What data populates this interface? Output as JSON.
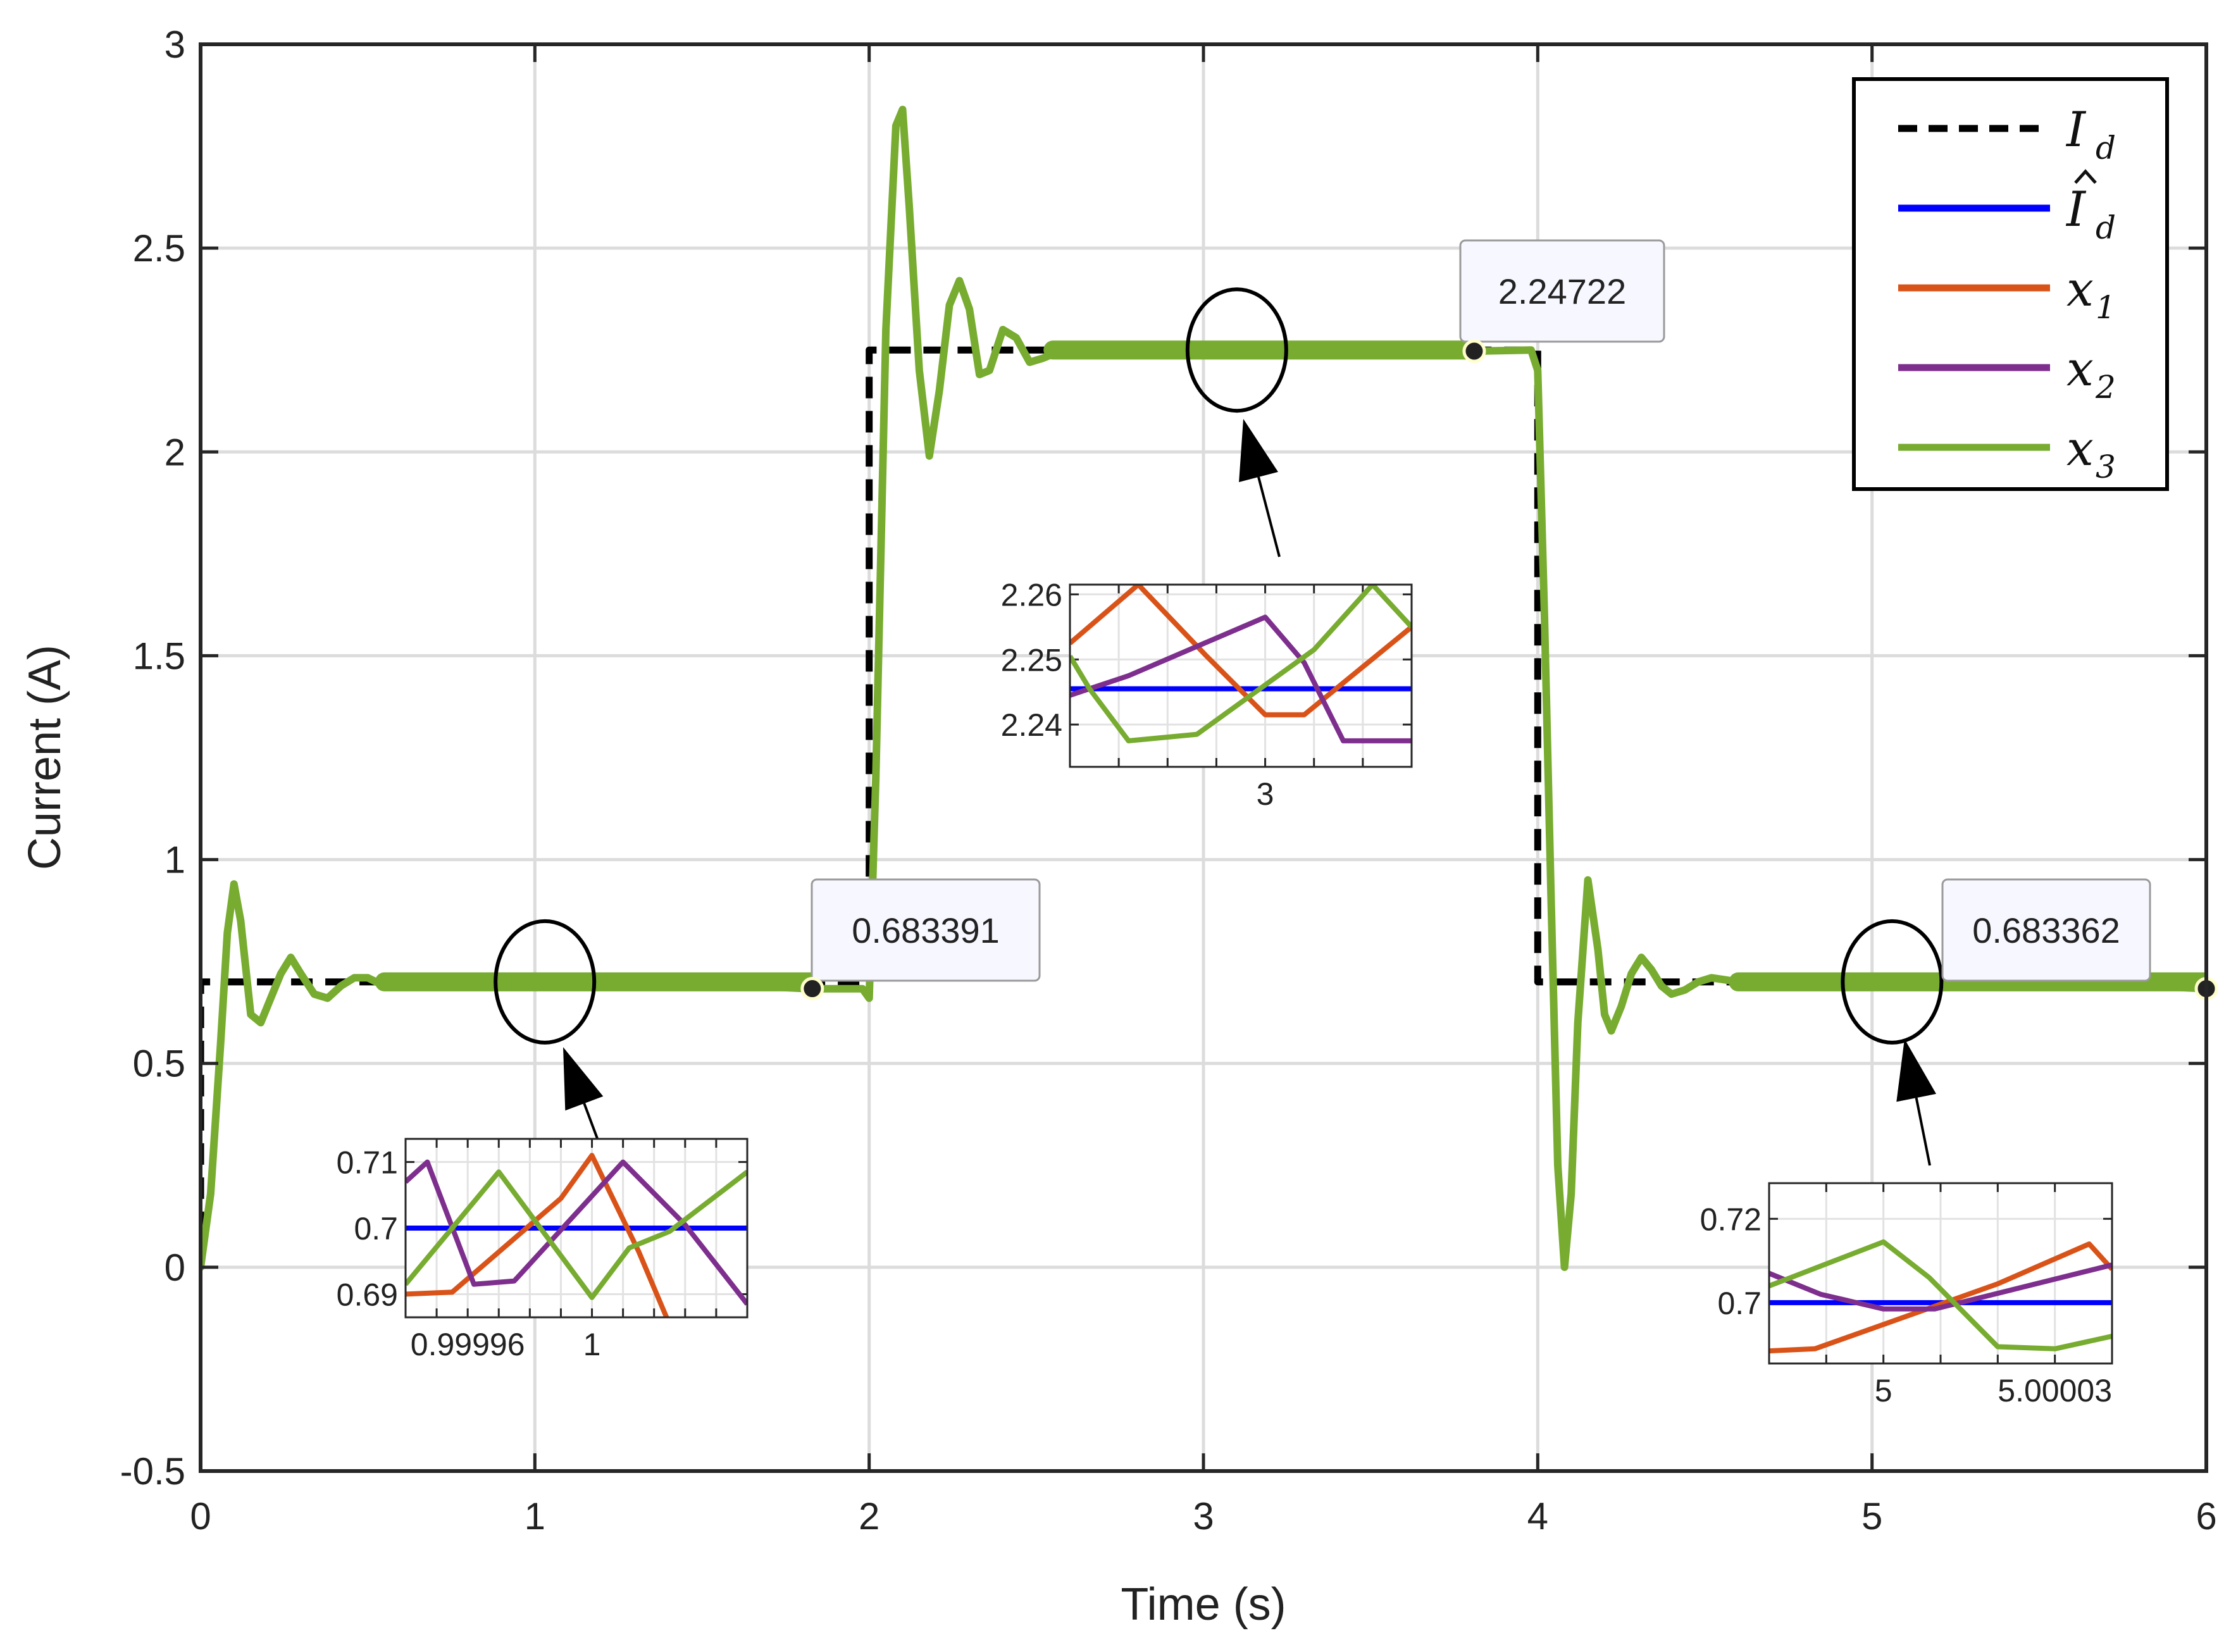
{
  "chart_data": {
    "type": "line",
    "title": "",
    "xlabel": "Time (s)",
    "ylabel": "Current (A)",
    "xlim": [
      0,
      6
    ],
    "ylim": [
      -0.5,
      3
    ],
    "xticks": [
      0,
      1,
      2,
      3,
      4,
      5,
      6
    ],
    "xtick_labels": [
      "0",
      "1",
      "2",
      "3",
      "4",
      "5",
      "6"
    ],
    "yticks": [
      -0.5,
      0,
      0.5,
      1,
      1.5,
      2,
      2.5,
      3
    ],
    "ytick_labels": [
      "-0.5",
      "0",
      "0.5",
      "1",
      "1.5",
      "2",
      "2.5",
      "3"
    ],
    "grid": true,
    "legend_position": "top-right",
    "legend": [
      {
        "key": "Id",
        "base": "I",
        "sub": "d",
        "hat": false,
        "color": "#000000",
        "dashed": true
      },
      {
        "key": "Id_hat",
        "base": "I",
        "sub": "d",
        "hat": true,
        "color": "#0000FF",
        "dashed": false
      },
      {
        "key": "x1",
        "base": "x",
        "sub": "1",
        "hat": false,
        "color": "#D95319",
        "dashed": false
      },
      {
        "key": "x2",
        "base": "x",
        "sub": "2",
        "hat": false,
        "color": "#7E2F8E",
        "dashed": false
      },
      {
        "key": "x3",
        "base": "x",
        "sub": "3",
        "hat": false,
        "color": "#77AC30",
        "dashed": false
      }
    ],
    "series": [
      {
        "name": "Id",
        "color": "#000000",
        "dashed": true,
        "x": [
          0,
          0.0001,
          2.0,
          2.0,
          4.0,
          4.0,
          6.0
        ],
        "y": [
          0,
          0.7,
          0.7,
          2.25,
          2.25,
          0.7,
          0.7
        ]
      },
      {
        "name": "x3",
        "color": "#77AC30",
        "dashed": false,
        "x": [
          0,
          0.03,
          0.06,
          0.08,
          0.1,
          0.12,
          0.15,
          0.18,
          0.21,
          0.24,
          0.27,
          0.3,
          0.34,
          0.38,
          0.42,
          0.46,
          0.5,
          0.55,
          0.6,
          0.7,
          0.8,
          1.0,
          1.4,
          1.82,
          1.98,
          2.0,
          2.02,
          2.05,
          2.08,
          2.1,
          2.12,
          2.15,
          2.18,
          2.21,
          2.24,
          2.27,
          2.3,
          2.33,
          2.36,
          2.4,
          2.44,
          2.48,
          2.52,
          2.58,
          2.65,
          2.75,
          2.9,
          3.2,
          3.8,
          3.98,
          4.0,
          4.02,
          4.04,
          4.06,
          4.08,
          4.1,
          4.12,
          4.15,
          4.18,
          4.2,
          4.22,
          4.25,
          4.28,
          4.31,
          4.34,
          4.37,
          4.4,
          4.44,
          4.48,
          4.52,
          4.56,
          4.6,
          4.65,
          4.7,
          4.8,
          4.9,
          5.1,
          5.6,
          6.0
        ],
        "y": [
          0,
          0.18,
          0.55,
          0.82,
          0.94,
          0.85,
          0.62,
          0.6,
          0.66,
          0.72,
          0.76,
          0.72,
          0.67,
          0.66,
          0.69,
          0.71,
          0.71,
          0.69,
          0.695,
          0.7,
          0.7,
          0.7,
          0.7,
          0.683,
          0.683,
          0.66,
          1.2,
          2.3,
          2.8,
          2.84,
          2.6,
          2.2,
          1.99,
          2.15,
          2.36,
          2.42,
          2.35,
          2.19,
          2.2,
          2.3,
          2.28,
          2.22,
          2.23,
          2.25,
          2.26,
          2.25,
          2.25,
          2.25,
          2.247,
          2.25,
          2.2,
          1.6,
          0.9,
          0.25,
          0.0,
          0.18,
          0.6,
          0.95,
          0.78,
          0.62,
          0.58,
          0.64,
          0.72,
          0.76,
          0.73,
          0.69,
          0.67,
          0.68,
          0.7,
          0.71,
          0.705,
          0.7,
          0.69,
          0.695,
          0.7,
          0.7,
          0.7,
          0.7,
          0.683
        ]
      }
    ],
    "emphasis_ellipses": [
      {
        "cx": 1.03,
        "cy": 0.7
      },
      {
        "cx": 3.1,
        "cy": 2.25
      },
      {
        "cx": 5.06,
        "cy": 0.7
      }
    ],
    "data_tips": [
      {
        "x": 1.83,
        "y": 0.683391,
        "label": "0.683391"
      },
      {
        "x": 3.81,
        "y": 2.24722,
        "label": "2.24722"
      },
      {
        "x": 6.0,
        "y": 0.683362,
        "label": "0.683362"
      }
    ],
    "insets": [
      {
        "name": "inset-1",
        "xlim": [
          0.99994,
          1.00005
        ],
        "ylim": [
          0.6865,
          0.7135
        ],
        "xtick_labels": [
          {
            "v": 0.99996,
            "label": "0.99996"
          },
          {
            "v": 1.0,
            "label": "1"
          }
        ],
        "ytick_labels": [
          {
            "v": 0.69,
            "label": "0.69"
          },
          {
            "v": 0.7,
            "label": "0.7"
          },
          {
            "v": 0.71,
            "label": "0.71"
          }
        ],
        "minor_xticks": [
          0.99995,
          0.99997,
          0.99998,
          0.99999,
          1.00001,
          1.00002,
          1.00003,
          1.00004
        ],
        "series": [
          {
            "name": "Id_hat",
            "x": [
              0.99994,
              1.00005
            ],
            "y": [
              0.7,
              0.7
            ]
          },
          {
            "name": "x1",
            "x": [
              0.99994,
              0.999955,
              0.99999,
              1.0,
              1.000015,
              1.000024
            ],
            "y": [
              0.69,
              0.6903,
              0.7045,
              0.711,
              0.6965,
              0.6865
            ]
          },
          {
            "name": "x2",
            "x": [
              0.99994,
              0.999947,
              0.999962,
              0.999975,
              1.00001,
              1.00003,
              1.00005
            ],
            "y": [
              0.707,
              0.71,
              0.6915,
              0.692,
              0.71,
              0.7005,
              0.6885
            ]
          },
          {
            "name": "x3",
            "x": [
              0.99994,
              0.99997,
              1.0,
              1.000012,
              1.000025,
              1.00005
            ],
            "y": [
              0.6915,
              0.7085,
              0.6895,
              0.697,
              0.6995,
              0.7085
            ]
          }
        ]
      },
      {
        "name": "inset-2",
        "xlim": [
          2.99998,
          3.000015
        ],
        "ylim": [
          2.2335,
          2.2615
        ],
        "xtick_labels": [
          {
            "v": 3.0,
            "label": "3"
          }
        ],
        "ytick_labels": [
          {
            "v": 2.24,
            "label": "2.24"
          },
          {
            "v": 2.25,
            "label": "2.25"
          },
          {
            "v": 2.26,
            "label": "2.26"
          }
        ],
        "minor_xticks": [
          2.999985,
          2.99999,
          2.999995,
          3.000005,
          3.00001
        ],
        "series": [
          {
            "name": "Id_hat",
            "x": [
              2.99998,
              3.000015
            ],
            "y": [
              2.2455,
              2.2455
            ]
          },
          {
            "name": "x1",
            "x": [
              2.99998,
              2.999987,
              2.999994,
              3.0,
              3.000004,
              3.000015
            ],
            "y": [
              2.2525,
              2.2615,
              2.2505,
              2.2415,
              2.2415,
              2.255
            ]
          },
          {
            "name": "x2",
            "x": [
              2.99998,
              2.999986,
              3.0,
              3.000004,
              3.000008,
              3.000015
            ],
            "y": [
              2.2445,
              2.2475,
              2.2565,
              2.2495,
              2.2375,
              2.2375
            ]
          },
          {
            "name": "x3",
            "x": [
              2.99998,
              2.999982,
              2.999986,
              2.999993,
              3.000005,
              3.000011,
              3.000015
            ],
            "y": [
              2.2505,
              2.2455,
              2.2375,
              2.2385,
              2.2515,
              2.2615,
              2.255
            ]
          }
        ]
      },
      {
        "name": "inset-3",
        "xlim": [
          4.99998,
          5.00004
        ],
        "ylim": [
          0.6855,
          0.7285
        ],
        "xtick_labels": [
          {
            "v": 5.0,
            "label": "5"
          },
          {
            "v": 5.00003,
            "label": "5.00003"
          }
        ],
        "ytick_labels": [
          {
            "v": 0.7,
            "label": "0.7"
          },
          {
            "v": 0.72,
            "label": "0.72"
          }
        ],
        "minor_xticks": [
          4.99999,
          5.00001,
          5.00002
        ],
        "series": [
          {
            "name": "Id_hat",
            "x": [
              4.99998,
              5.00004
            ],
            "y": [
              0.7,
              0.7
            ]
          },
          {
            "name": "x1",
            "x": [
              4.99998,
              4.999988,
              5.00002,
              5.000036,
              5.00004
            ],
            "y": [
              0.6885,
              0.689,
              0.7045,
              0.714,
              0.708
            ]
          },
          {
            "name": "x2",
            "x": [
              4.99998,
              4.999989,
              5.0,
              5.000009,
              5.00004
            ],
            "y": [
              0.707,
              0.702,
              0.6985,
              0.6985,
              0.709
            ]
          },
          {
            "name": "x3",
            "x": [
              4.99998,
              5.0,
              5.000008,
              5.00002,
              5.00003,
              5.00004
            ],
            "y": [
              0.704,
              0.7145,
              0.706,
              0.6895,
              0.689,
              0.692
            ]
          }
        ]
      }
    ]
  }
}
